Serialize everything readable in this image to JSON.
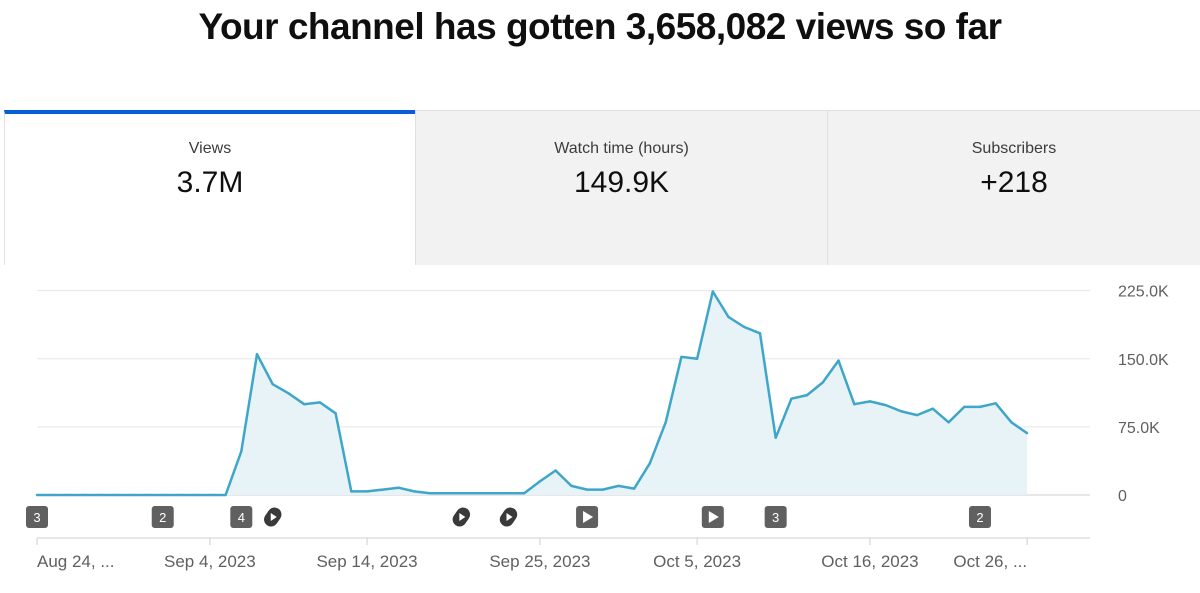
{
  "header": {
    "title": "Your channel has gotten 3,658,082 views so far"
  },
  "metrics": [
    {
      "label": "Views",
      "value": "3.7M",
      "selected": true
    },
    {
      "label": "Watch time (hours)",
      "value": "149.9K",
      "selected": false
    },
    {
      "label": "Subscribers",
      "value": "+218",
      "selected": false
    }
  ],
  "colors": {
    "accent": "#065fd4",
    "line": "#3ea6c8",
    "area": "#e8f3f7",
    "tab_inactive": "#f2f2f2",
    "marker": "#606060"
  },
  "chart_data": {
    "type": "area",
    "x_start": "2023-08-24",
    "x_end": "2023-10-30",
    "series": [
      {
        "values": [
          [
            "2023-08-24",
            0
          ],
          [
            "2023-08-25",
            0
          ],
          [
            "2023-08-26",
            0
          ],
          [
            "2023-08-27",
            0
          ],
          [
            "2023-08-28",
            0
          ],
          [
            "2023-08-29",
            0
          ],
          [
            "2023-08-30",
            0
          ],
          [
            "2023-08-31",
            0
          ],
          [
            "2023-09-01",
            0
          ],
          [
            "2023-09-02",
            0
          ],
          [
            "2023-09-03",
            0
          ],
          [
            "2023-09-04",
            0
          ],
          [
            "2023-09-05",
            0
          ],
          [
            "2023-09-06",
            48000
          ],
          [
            "2023-09-07",
            155000
          ],
          [
            "2023-09-08",
            122000
          ],
          [
            "2023-09-09",
            112000
          ],
          [
            "2023-09-10",
            100000
          ],
          [
            "2023-09-11",
            102000
          ],
          [
            "2023-09-12",
            90000
          ],
          [
            "2023-09-13",
            4000
          ],
          [
            "2023-09-14",
            4000
          ],
          [
            "2023-09-15",
            6000
          ],
          [
            "2023-09-16",
            8000
          ],
          [
            "2023-09-17",
            4000
          ],
          [
            "2023-09-18",
            2000
          ],
          [
            "2023-09-19",
            2000
          ],
          [
            "2023-09-20",
            2000
          ],
          [
            "2023-09-21",
            2000
          ],
          [
            "2023-09-22",
            2000
          ],
          [
            "2023-09-23",
            2000
          ],
          [
            "2023-09-24",
            2000
          ],
          [
            "2023-09-25",
            15000
          ],
          [
            "2023-09-26",
            27000
          ],
          [
            "2023-09-27",
            10000
          ],
          [
            "2023-09-28",
            6000
          ],
          [
            "2023-09-29",
            6000
          ],
          [
            "2023-09-30",
            10000
          ],
          [
            "2023-10-01",
            7000
          ],
          [
            "2023-10-02",
            35000
          ],
          [
            "2023-10-03",
            80000
          ],
          [
            "2023-10-04",
            152000
          ],
          [
            "2023-10-05",
            150000
          ],
          [
            "2023-10-06",
            224000
          ],
          [
            "2023-10-07",
            196000
          ],
          [
            "2023-10-08",
            185000
          ],
          [
            "2023-10-09",
            178000
          ],
          [
            "2023-10-10",
            63000
          ],
          [
            "2023-10-11",
            106000
          ],
          [
            "2023-10-12",
            110000
          ],
          [
            "2023-10-13",
            124000
          ],
          [
            "2023-10-14",
            148000
          ],
          [
            "2023-10-15",
            100000
          ],
          [
            "2023-10-16",
            103000
          ],
          [
            "2023-10-17",
            99000
          ],
          [
            "2023-10-18",
            92000
          ],
          [
            "2023-10-19",
            88000
          ],
          [
            "2023-10-20",
            95000
          ],
          [
            "2023-10-21",
            80000
          ],
          [
            "2023-10-22",
            97000
          ],
          [
            "2023-10-23",
            97000
          ],
          [
            "2023-10-24",
            101000
          ],
          [
            "2023-10-25",
            80000
          ],
          [
            "2023-10-26",
            68000
          ]
        ]
      }
    ],
    "y_ticks": [
      0,
      75000,
      150000,
      225000
    ],
    "y_tick_labels": [
      "0",
      "75.0K",
      "150.0K",
      "225.0K"
    ],
    "ylim": [
      0,
      240000
    ],
    "x_tick_labels": [
      {
        "date": "2023-08-24",
        "label": "Aug 24, ..."
      },
      {
        "date": "2023-09-04",
        "label": "Sep 4, 2023"
      },
      {
        "date": "2023-09-14",
        "label": "Sep 14, 2023"
      },
      {
        "date": "2023-09-25",
        "label": "Sep 25, 2023"
      },
      {
        "date": "2023-10-05",
        "label": "Oct 5, 2023"
      },
      {
        "date": "2023-10-16",
        "label": "Oct 16, 2023"
      },
      {
        "date": "2023-10-26",
        "label": "Oct 26, ..."
      }
    ],
    "markers": [
      {
        "date": "2023-08-24",
        "kind": "count",
        "text": "3"
      },
      {
        "date": "2023-09-01",
        "kind": "count",
        "text": "2"
      },
      {
        "date": "2023-09-06",
        "kind": "count",
        "text": "4"
      },
      {
        "date": "2023-09-08",
        "kind": "shorts-icon",
        "text": ""
      },
      {
        "date": "2023-09-20",
        "kind": "shorts-icon",
        "text": ""
      },
      {
        "date": "2023-09-23",
        "kind": "shorts-icon",
        "text": ""
      },
      {
        "date": "2023-09-28",
        "kind": "play-icon",
        "text": ""
      },
      {
        "date": "2023-10-06",
        "kind": "play-icon",
        "text": ""
      },
      {
        "date": "2023-10-10",
        "kind": "count",
        "text": "3"
      },
      {
        "date": "2023-10-23",
        "kind": "count",
        "text": "2"
      }
    ],
    "grid": true,
    "legend": "none"
  }
}
